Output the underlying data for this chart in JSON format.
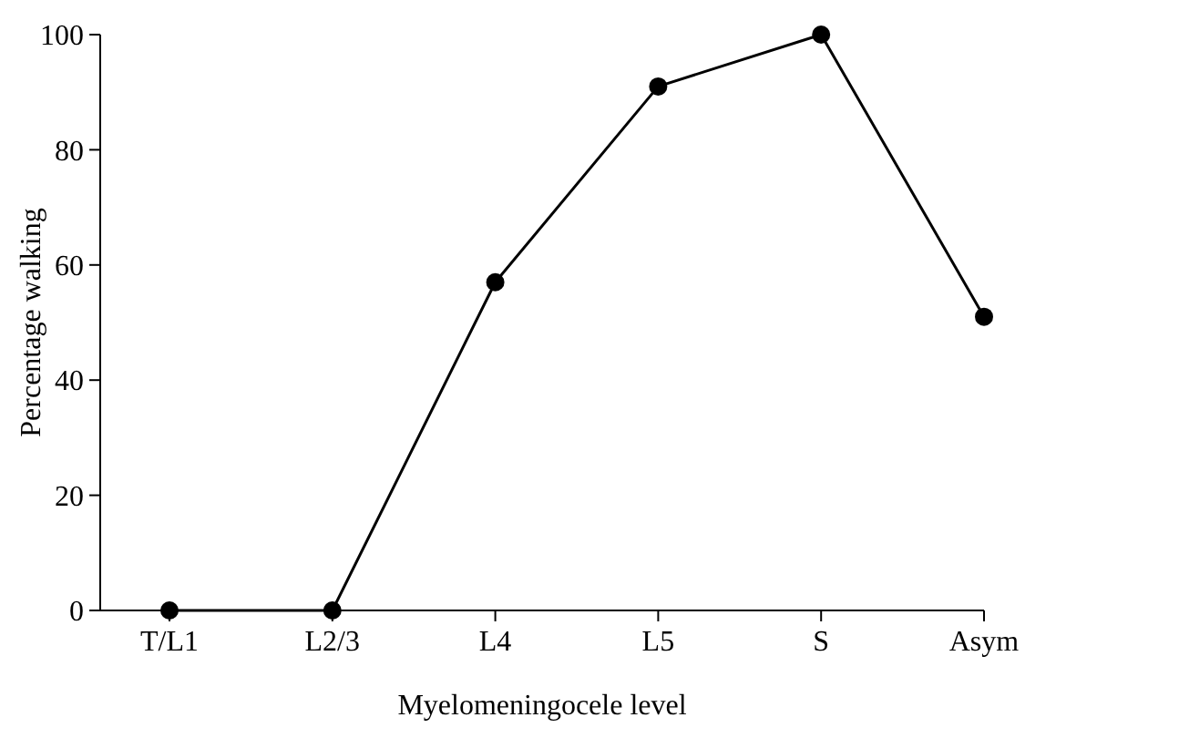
{
  "chart_data": {
    "type": "line",
    "xlabel": "Myelomeningocele level",
    "ylabel": "Percentage walking",
    "categories": [
      "T/L1",
      "L2/3",
      "L4",
      "L5",
      "S",
      "Asym"
    ],
    "series": [
      {
        "color": "#000000",
        "values": [
          0,
          0,
          57,
          91,
          100,
          51
        ]
      }
    ],
    "ylim": [
      0,
      100
    ],
    "yticks": [
      0,
      20,
      40,
      60,
      80,
      100
    ],
    "marker": "circle",
    "line_style": "solid"
  }
}
